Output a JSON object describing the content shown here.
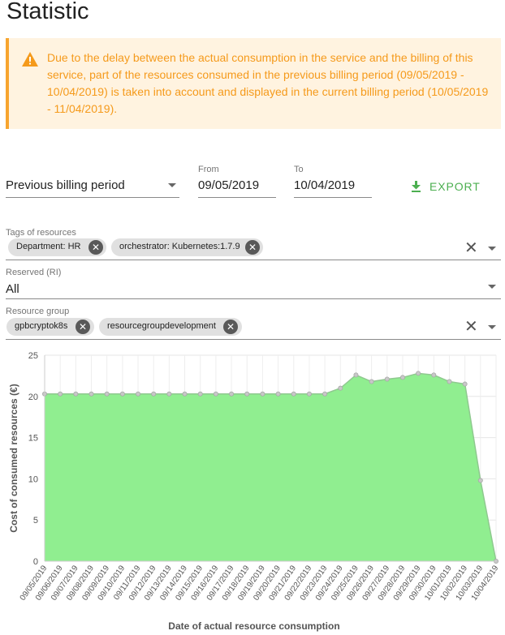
{
  "page": {
    "title": "Statistic"
  },
  "alert": {
    "icon": "warning-icon",
    "color": "#f59a1b",
    "text": "Due to the delay between the actual consumption in the service and the billing of this service, part of the resources consumed in the previous billing period (09/05/2019 - 10/04/2019) is taken into account and displayed in the current billing period (10/05/2019 - 11/04/2019)."
  },
  "controls": {
    "period": {
      "value": "Previous billing period"
    },
    "from": {
      "label": "From",
      "value": "09/05/2019"
    },
    "to": {
      "label": "To",
      "value": "10/04/2019"
    },
    "export": {
      "label": "EXPORT",
      "icon": "download-icon",
      "color": "#4caf50"
    }
  },
  "filters": {
    "tags": {
      "label": "Tags of resources",
      "chips": [
        "Department: HR",
        "orchestrator: Kubernetes:1.7.9"
      ]
    },
    "reserved": {
      "label": "Reserved (RI)",
      "value": "All"
    },
    "resource_group": {
      "label": "Resource group",
      "chips": [
        "gpbcryptok8s",
        "resourcegroupdevelopment"
      ]
    }
  },
  "chart_data": {
    "type": "area",
    "title": "",
    "xlabel": "Date of actual resource consumption",
    "ylabel": "Cost of consumed resources (€)",
    "ylim": [
      0,
      25
    ],
    "yticks": [
      0,
      5,
      10,
      15,
      20,
      25
    ],
    "grid": true,
    "fill_color": "#90ee90",
    "line_color": "#8fc98f",
    "x": [
      "09/05/2019",
      "09/06/2019",
      "09/07/2019",
      "09/08/2019",
      "09/09/2019",
      "09/10/2019",
      "09/11/2019",
      "09/12/2019",
      "09/13/2019",
      "09/14/2019",
      "09/15/2019",
      "09/16/2019",
      "09/17/2019",
      "09/18/2019",
      "09/19/2019",
      "09/20/2019",
      "09/21/2019",
      "09/22/2019",
      "09/23/2019",
      "09/24/2019",
      "09/25/2019",
      "09/26/2019",
      "09/27/2019",
      "09/28/2019",
      "09/29/2019",
      "09/30/2019",
      "10/01/2019",
      "10/02/2019",
      "10/03/2019",
      "10/04/2019"
    ],
    "values": [
      20.3,
      20.3,
      20.3,
      20.3,
      20.3,
      20.3,
      20.3,
      20.3,
      20.3,
      20.3,
      20.3,
      20.3,
      20.3,
      20.3,
      20.3,
      20.3,
      20.3,
      20.3,
      20.3,
      21.0,
      22.6,
      21.8,
      22.1,
      22.3,
      22.8,
      22.6,
      21.8,
      21.5,
      9.8,
      0
    ]
  }
}
